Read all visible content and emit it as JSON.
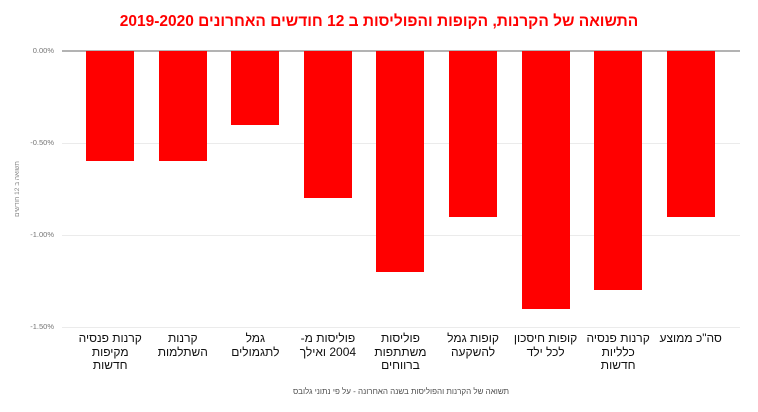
{
  "chart_data": {
    "type": "bar",
    "title": "התשואה של הקרנות, הקופות והפוליסות ב 12 חודשים האחרונים 2019-2020",
    "ylabel": "תשואה ב 12 חודשים",
    "xlabel": "",
    "categories": [
      "סה\"כ ממוצע",
      "קרנות פנסיה\nכלליות\nחדשות",
      "קופות חיסכון\nלכל ילד",
      "קופות גמל\nלהשקעה",
      "פוליסות\nמשתתפות\nברווחים",
      "פוליסות מ-\n2004 ואילך",
      "גמל\nלתגמולים",
      "קרנות\nהשתלמות",
      "קרנות פנסיה\nמקיפות\nחדשות"
    ],
    "values": [
      -0.9,
      -1.3,
      -1.4,
      -0.9,
      -1.2,
      -0.8,
      -0.4,
      -0.6,
      -0.6
    ],
    "value_unit": "%",
    "ylim": [
      -1.5,
      0
    ],
    "yticks": [
      {
        "label": "0.00%",
        "value": 0
      },
      {
        "label": "-0.50%",
        "value": -0.5
      },
      {
        "label": "-1.00%",
        "value": -1.0
      },
      {
        "label": "-1.50%",
        "value": -1.5
      }
    ],
    "grid": true,
    "legend": false,
    "direction": "rtl",
    "bar_color": "#ff0000"
  },
  "colors": {
    "title": "#ff0000",
    "bar": "#ff0000",
    "zero_line": "#b3b3b3",
    "gridline": "#ebebeb",
    "tick_text": "#757575",
    "label_text": "#111111",
    "ylabel_text": "#888888",
    "footer_text": "#4d4d4d"
  },
  "footer": {
    "text": "תשואה של הקרנות והפוליסות בשנה האחרונה - על פי נתוני גלובס"
  }
}
